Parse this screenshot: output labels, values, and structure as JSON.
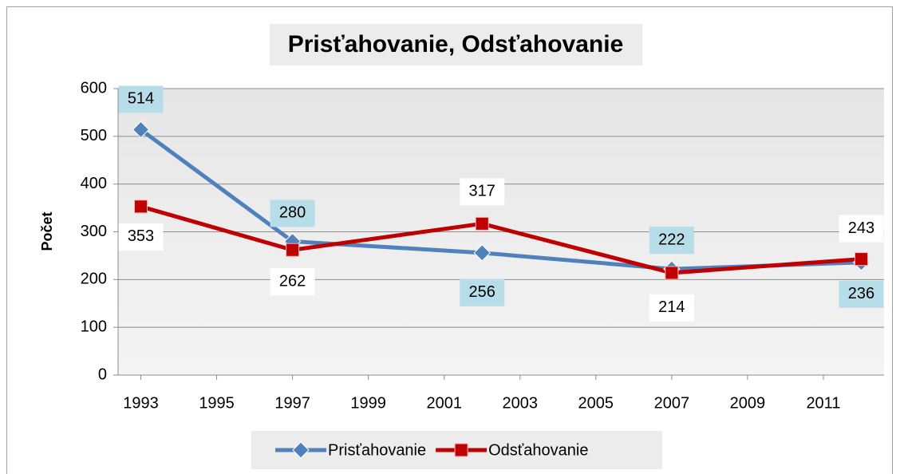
{
  "chart_data": {
    "type": "line",
    "title": "Prisťahovanie, Odsťahovanie",
    "y_label": "Počet",
    "x": [
      1993,
      1997,
      2002,
      2007,
      2012
    ],
    "series": [
      {
        "name": "Prisťahovanie",
        "color": "#4f81bd",
        "marker": "diamond",
        "label_bg": "#b7dde8",
        "values": [
          514,
          280,
          256,
          222,
          236
        ]
      },
      {
        "name": "Odsťahovanie",
        "color": "#c00000",
        "marker": "square",
        "label_bg": "#ffffff",
        "values": [
          353,
          262,
          317,
          214,
          243
        ]
      }
    ],
    "xlim": [
      1992.4,
      2012.6
    ],
    "xticks": [
      1993,
      1995,
      1997,
      1999,
      2001,
      2003,
      2005,
      2007,
      2009,
      2011
    ],
    "ylim": [
      0,
      600
    ],
    "yticks": [
      0,
      100,
      200,
      300,
      400,
      500,
      600
    ],
    "grid": true,
    "legend": "bottom"
  }
}
